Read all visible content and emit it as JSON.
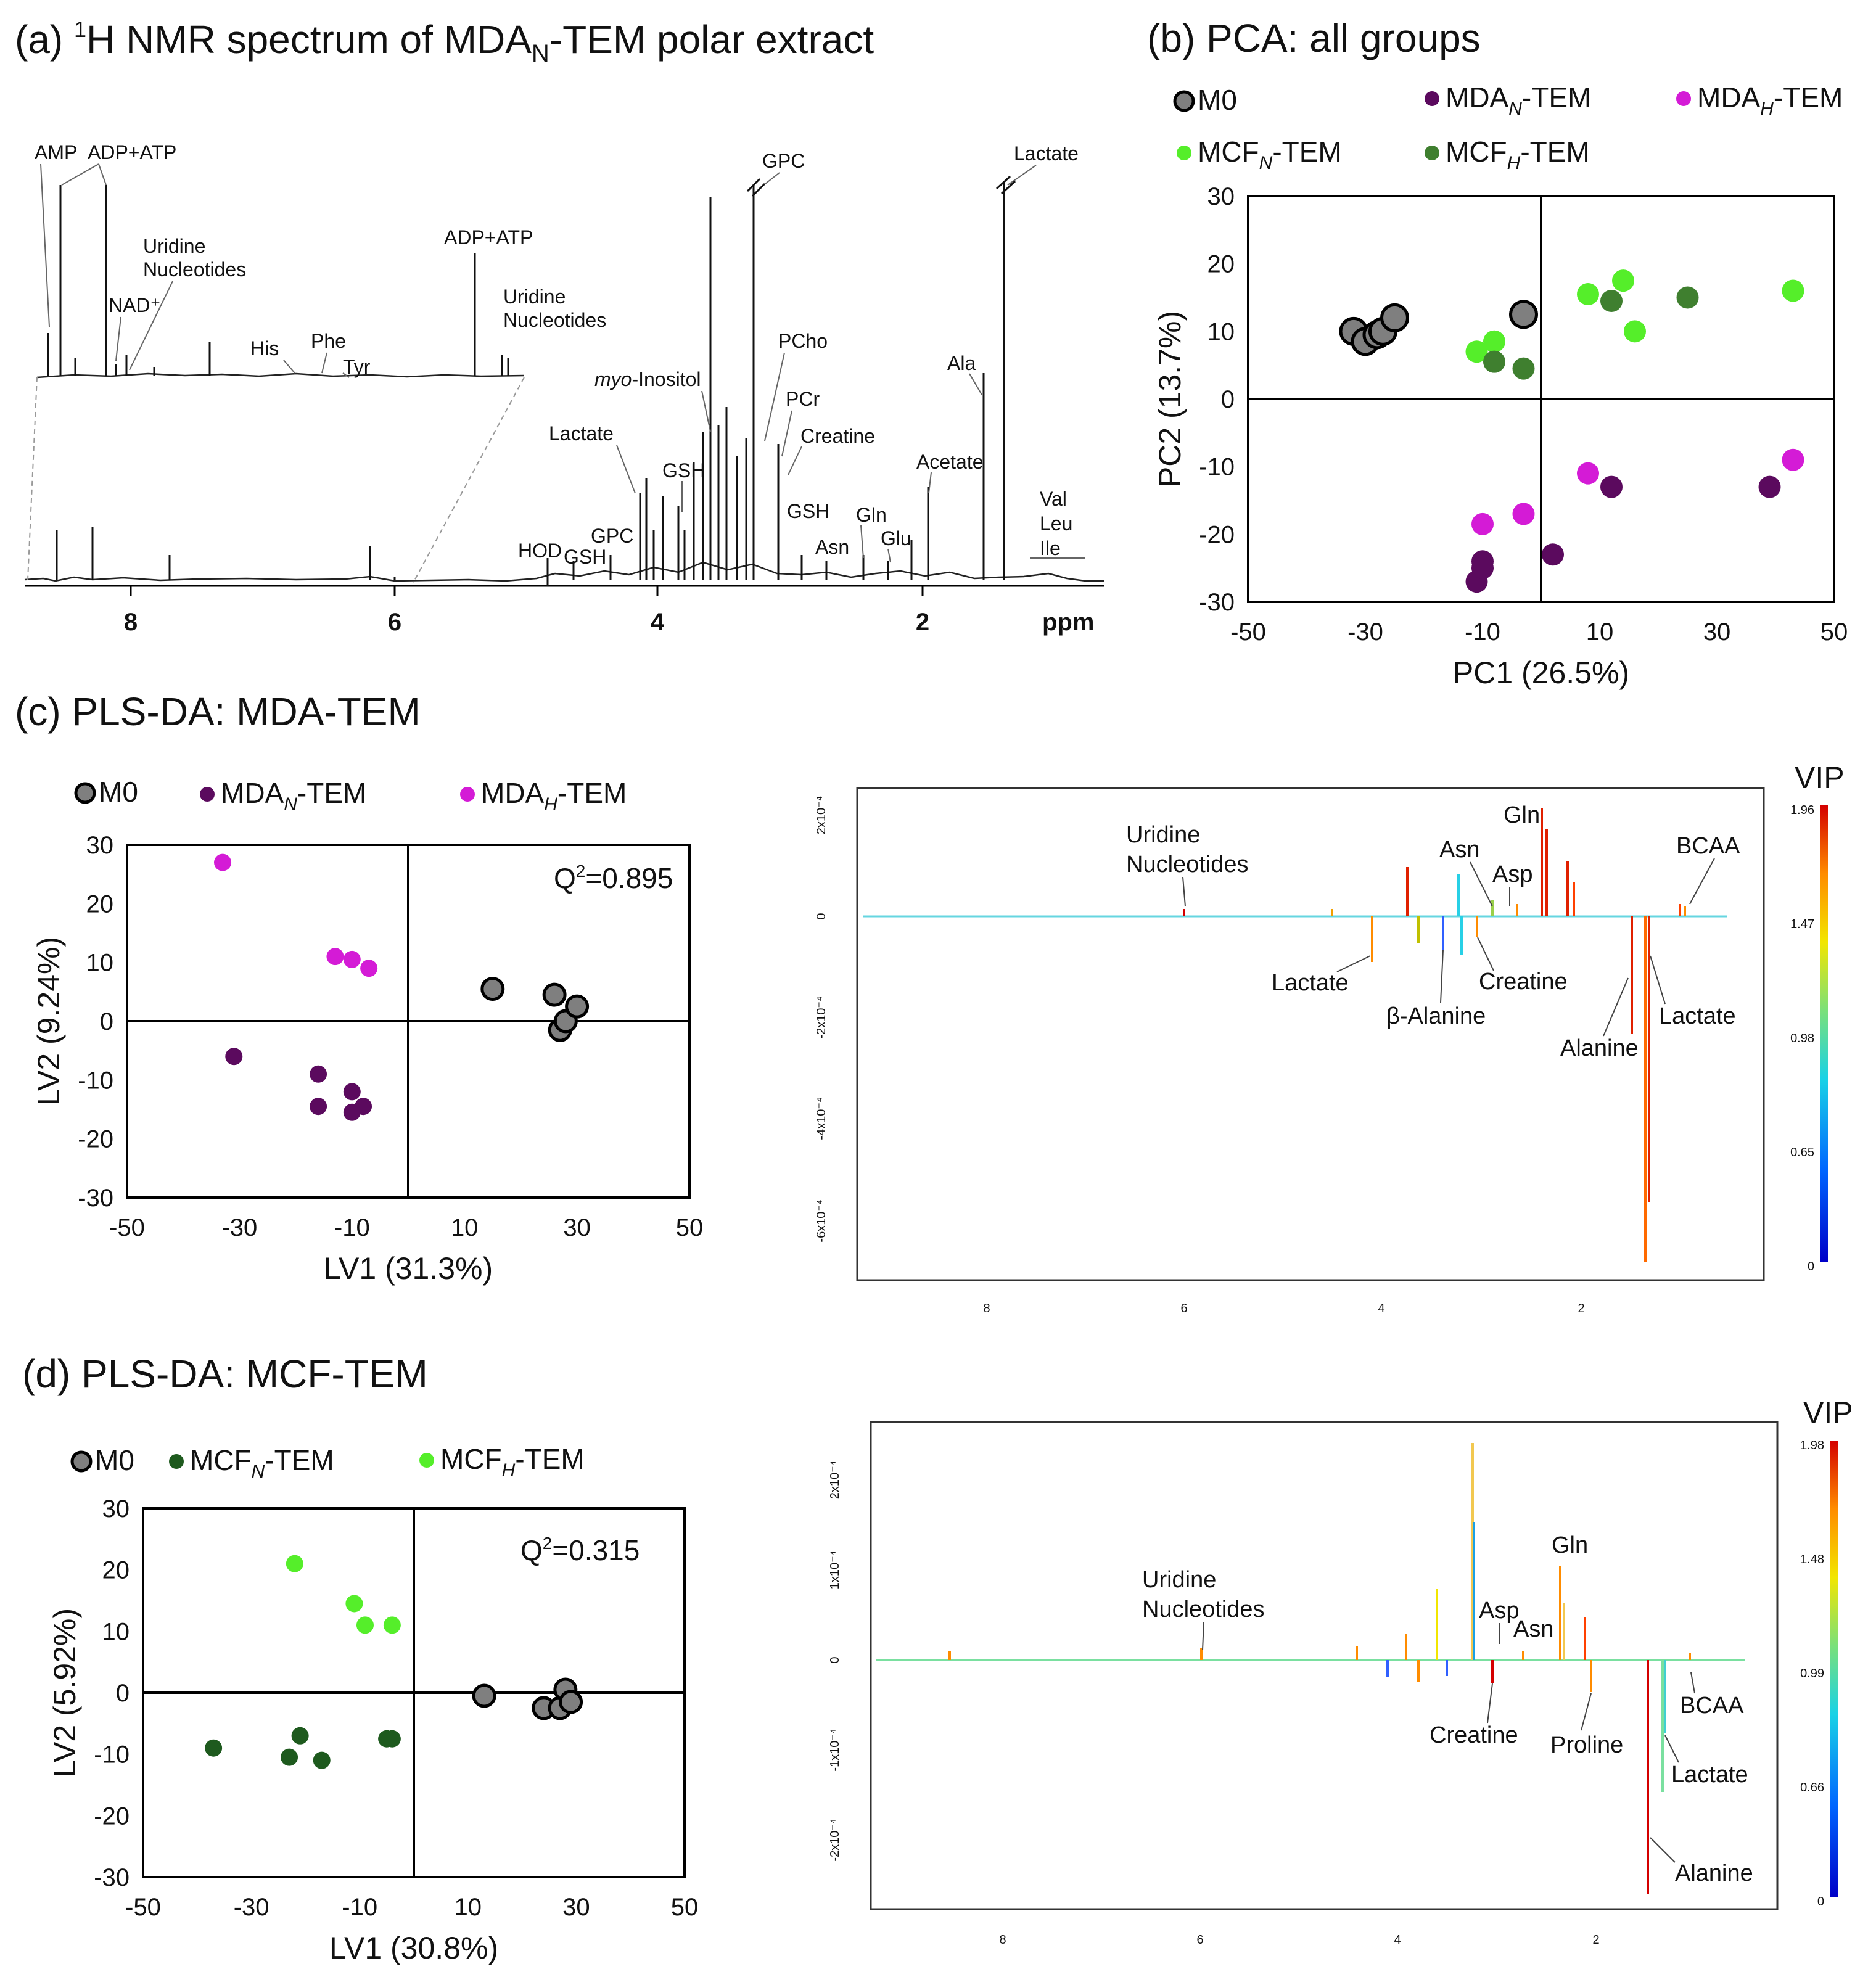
{
  "panel_a": {
    "title_pre": "(a) ",
    "title_super": "1",
    "title_mid": "H NMR spectrum of MDA",
    "title_sub": "N",
    "title_post": "-TEM polar extract",
    "x_ticks": [
      "8",
      "6",
      "4",
      "2"
    ],
    "x_unit": "ppm",
    "labels": {
      "amp": "AMP",
      "adp_atp_1": "ADP+ATP",
      "uridine_1": "Uridine",
      "nucleotides_1": "Nucleotides",
      "nad": "NAD⁺",
      "his": "His",
      "phe": "Phe",
      "tyr": "Tyr",
      "adp_atp_2": "ADP+ATP",
      "uridine_2": "Uridine",
      "nucleotides_2": "Nucleotides",
      "gpc_top": "GPC",
      "lactate_top": "Lactate",
      "pcho": "PCho",
      "myo_italic": "myo",
      "myo_rest": "-Inositol",
      "pcr": "PCr",
      "creatine": "Creatine",
      "lactate_mid": "Lactate",
      "ala": "Ala",
      "gsh_1": "GSH",
      "acetate": "Acetate",
      "gsh_2": "GSH",
      "gln": "Gln",
      "val": "Val",
      "leu": "Leu",
      "ile": "Ile",
      "gpc_low": "GPC",
      "asn": "Asn",
      "glu": "Glu",
      "hod": "HOD",
      "gsh_3": "GSH"
    }
  },
  "panel_b": {
    "title": "(b) PCA: all groups",
    "legend": [
      {
        "pre": "M0",
        "sub": "",
        "post": ""
      },
      {
        "pre": "MDA",
        "sub": "N",
        "post": "-TEM"
      },
      {
        "pre": "MDA",
        "sub": "H",
        "post": "-TEM"
      },
      {
        "pre": "MCF",
        "sub": "N",
        "post": "-TEM"
      },
      {
        "pre": "MCF",
        "sub": "H",
        "post": "-TEM"
      }
    ],
    "colors": {
      "m0": "#7f7f7f",
      "mda_n": "#5b0a5e",
      "mda_h": "#d41bd6",
      "mcf_n": "#55ee2a",
      "mcf_h": "#3f7f2f"
    }
  },
  "panel_c": {
    "title": "(c) PLS-DA: MDA-TEM",
    "legend": [
      {
        "pre": "M0",
        "sub": "",
        "post": ""
      },
      {
        "pre": "MDA",
        "sub": "N",
        "post": "-TEM"
      },
      {
        "pre": "MDA",
        "sub": "H",
        "post": "-TEM"
      }
    ],
    "q2_pre": "Q",
    "q2_sup": "2",
    "q2_post": "=0.895",
    "vip_title": "VIP",
    "vip_ticks": [
      "1.96",
      "1.47",
      "0.98",
      "0.65",
      "0"
    ],
    "y_ticks": [
      "2x10⁻⁴",
      "0",
      "-2x10⁻⁴",
      "-4x10⁻⁴",
      "-6x10⁻⁴"
    ],
    "x_ticks": [
      "8",
      "6",
      "4",
      "2"
    ],
    "labels": {
      "uridine": "Uridine",
      "nucleotides": "Nucleotides",
      "gln": "Gln",
      "asn": "Asn",
      "asp": "Asp",
      "bcaa": "BCAA",
      "lactate_1": "Lactate",
      "creatine": "Creatine",
      "b_alanine": "β-Alanine",
      "lactate_2": "Lactate",
      "alanine": "Alanine"
    }
  },
  "panel_d": {
    "title": "(d) PLS-DA: MCF-TEM",
    "legend": [
      {
        "pre": "M0",
        "sub": "",
        "post": ""
      },
      {
        "pre": "MCF",
        "sub": "N",
        "post": "-TEM"
      },
      {
        "pre": "MCF",
        "sub": "H",
        "post": "-TEM"
      }
    ],
    "q2_pre": "Q",
    "q2_sup": "2",
    "q2_post": "=0.315",
    "vip_title": "VIP",
    "vip_ticks": [
      "1.98",
      "1.48",
      "0.99",
      "0.66",
      "0"
    ],
    "y_ticks": [
      "2x10⁻⁴",
      "1x10⁻⁴",
      "0",
      "-1x10⁻⁴",
      "-2x10⁻⁴"
    ],
    "x_ticks": [
      "8",
      "6",
      "4",
      "2"
    ],
    "labels": {
      "uridine": "Uridine",
      "nucleotides": "Nucleotides",
      "gln": "Gln",
      "asp": "Asp",
      "asn": "Asn",
      "bcaa": "BCAA",
      "creatine": "Creatine",
      "proline": "Proline",
      "lactate": "Lactate",
      "alanine": "Alanine"
    },
    "colors": {
      "mcf_n": "#1e5a1e",
      "mcf_h": "#55ee2a"
    }
  },
  "chart_data": [
    {
      "id": "pca",
      "type": "scatter",
      "xlabel": "PC1 (26.5%)",
      "ylabel": "PC2 (13.7%)",
      "xlim": [
        -50,
        50
      ],
      "ylim": [
        -30,
        30
      ],
      "x_ticks": [
        -50,
        -30,
        -10,
        10,
        30,
        50
      ],
      "y_ticks": [
        30,
        20,
        10,
        0,
        -10,
        -20,
        -30
      ],
      "series": [
        {
          "name": "M0",
          "color": "#7f7f7f",
          "points": [
            [
              -32,
              10
            ],
            [
              -30,
              8.5
            ],
            [
              -28,
              9.5
            ],
            [
              -27,
              10
            ],
            [
              -25,
              12
            ],
            [
              -3,
              12.5
            ]
          ]
        },
        {
          "name": "MDA_N-TEM",
          "color": "#5b0a5e",
          "points": [
            [
              -11,
              -27
            ],
            [
              -10,
              -24
            ],
            [
              -10,
              -25
            ],
            [
              2,
              -23
            ],
            [
              12,
              -13
            ],
            [
              39,
              -13
            ]
          ]
        },
        {
          "name": "MDA_H-TEM",
          "color": "#d41bd6",
          "points": [
            [
              -10,
              -18.5
            ],
            [
              -3,
              -17
            ],
            [
              8,
              -11
            ],
            [
              43,
              -9
            ]
          ]
        },
        {
          "name": "MCF_N-TEM",
          "color": "#55ee2a",
          "points": [
            [
              -11,
              7
            ],
            [
              -8,
              8.5
            ],
            [
              8,
              15.5
            ],
            [
              14,
              17.5
            ],
            [
              16,
              10
            ],
            [
              43,
              16
            ]
          ]
        },
        {
          "name": "MCF_H-TEM",
          "color": "#3f7f2f",
          "points": [
            [
              -8,
              5.5
            ],
            [
              -3,
              4.5
            ],
            [
              12,
              14.5
            ],
            [
              25,
              15
            ]
          ]
        }
      ]
    },
    {
      "id": "plsda_mda",
      "type": "scatter",
      "xlabel": "LV1 (31.3%)",
      "ylabel": "LV2 (9.24%)",
      "xlim": [
        -50,
        50
      ],
      "ylim": [
        -30,
        30
      ],
      "x_ticks": [
        -50,
        -30,
        -10,
        10,
        30,
        50
      ],
      "y_ticks": [
        30,
        20,
        10,
        0,
        -10,
        -20,
        -30
      ],
      "series": [
        {
          "name": "M0",
          "color": "#7f7f7f",
          "points": [
            [
              15,
              5.5
            ],
            [
              26,
              4.5
            ],
            [
              27,
              -1.5
            ],
            [
              28,
              0
            ],
            [
              30,
              2.5
            ]
          ]
        },
        {
          "name": "MDA_N-TEM",
          "color": "#5b0a5e",
          "points": [
            [
              -31,
              -6
            ],
            [
              -16,
              -9
            ],
            [
              -16,
              -14.5
            ],
            [
              -10,
              -12
            ],
            [
              -10,
              -15.5
            ],
            [
              -8,
              -14.5
            ]
          ]
        },
        {
          "name": "MDA_H-TEM",
          "color": "#d41bd6",
          "points": [
            [
              -33,
              27
            ],
            [
              -13,
              11
            ],
            [
              -10,
              10.5
            ],
            [
              -7,
              9
            ]
          ]
        }
      ]
    },
    {
      "id": "plsda_mcf",
      "type": "scatter",
      "xlabel": "LV1 (30.8%)",
      "ylabel": "LV2 (5.92%)",
      "xlim": [
        -50,
        50
      ],
      "ylim": [
        -30,
        30
      ],
      "x_ticks": [
        -50,
        -30,
        -10,
        10,
        30,
        50
      ],
      "y_ticks": [
        30,
        20,
        10,
        0,
        -10,
        -20,
        -30
      ],
      "series": [
        {
          "name": "M0",
          "color": "#7f7f7f",
          "points": [
            [
              13,
              -0.5
            ],
            [
              24,
              -2.5
            ],
            [
              27,
              -2.5
            ],
            [
              28,
              0.5
            ],
            [
              29,
              -1.5
            ]
          ]
        },
        {
          "name": "MCF_N-TEM",
          "color": "#1e5a1e",
          "points": [
            [
              -37,
              -9
            ],
            [
              -23,
              -10.5
            ],
            [
              -21,
              -7
            ],
            [
              -17,
              -11
            ],
            [
              -5,
              -7.5
            ],
            [
              -4,
              -7.5
            ]
          ]
        },
        {
          "name": "MCF_H-TEM",
          "color": "#55ee2a",
          "points": [
            [
              -22,
              21
            ],
            [
              -11,
              14.5
            ],
            [
              -9,
              11
            ],
            [
              -4,
              11
            ]
          ]
        }
      ]
    }
  ]
}
